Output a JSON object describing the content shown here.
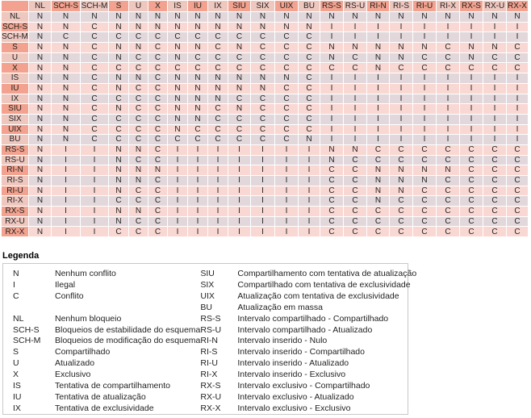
{
  "matrix": {
    "columns": [
      "NL",
      "SCH-S",
      "SCH-M",
      "S",
      "U",
      "X",
      "IS",
      "IU",
      "IX",
      "SIU",
      "SIX",
      "UIX",
      "BU",
      "RS-S",
      "RS-U",
      "RI-N",
      "RI-S",
      "RI-U",
      "RI-X",
      "RX-S",
      "RX-U",
      "RX-X"
    ],
    "rows": [
      {
        "label": "NL",
        "cells": [
          "N",
          "N",
          "N",
          "N",
          "N",
          "N",
          "N",
          "N",
          "N",
          "N",
          "N",
          "N",
          "N",
          "N",
          "N",
          "N",
          "N",
          "N",
          "N",
          "N",
          "N",
          "N"
        ]
      },
      {
        "label": "SCH-S",
        "cells": [
          "N",
          "N",
          "C",
          "N",
          "N",
          "N",
          "N",
          "N",
          "N",
          "N",
          "N",
          "N",
          "N",
          "I",
          "I",
          "I",
          "I",
          "I",
          "I",
          "I",
          "I",
          "I"
        ]
      },
      {
        "label": "SCH-M",
        "cells": [
          "N",
          "C",
          "C",
          "C",
          "C",
          "C",
          "C",
          "C",
          "C",
          "C",
          "C",
          "C",
          "C",
          "I",
          "I",
          "I",
          "I",
          "I",
          "I",
          "I",
          "I",
          "I"
        ]
      },
      {
        "label": "S",
        "cells": [
          "N",
          "N",
          "C",
          "N",
          "N",
          "C",
          "N",
          "N",
          "C",
          "N",
          "C",
          "C",
          "C",
          "N",
          "N",
          "N",
          "N",
          "N",
          "C",
          "N",
          "N",
          "C"
        ]
      },
      {
        "label": "U",
        "cells": [
          "N",
          "N",
          "C",
          "N",
          "C",
          "C",
          "N",
          "C",
          "C",
          "C",
          "C",
          "C",
          "C",
          "N",
          "C",
          "N",
          "N",
          "C",
          "C",
          "N",
          "C",
          "C"
        ]
      },
      {
        "label": "X",
        "cells": [
          "N",
          "N",
          "C",
          "C",
          "C",
          "C",
          "C",
          "C",
          "C",
          "C",
          "C",
          "C",
          "C",
          "C",
          "C",
          "N",
          "C",
          "C",
          "C",
          "C",
          "C",
          "C"
        ]
      },
      {
        "label": "IS",
        "cells": [
          "N",
          "N",
          "C",
          "N",
          "N",
          "C",
          "N",
          "N",
          "N",
          "N",
          "N",
          "N",
          "C",
          "I",
          "I",
          "I",
          "I",
          "I",
          "I",
          "I",
          "I",
          "I"
        ]
      },
      {
        "label": "IU",
        "cells": [
          "N",
          "N",
          "C",
          "N",
          "C",
          "C",
          "N",
          "N",
          "N",
          "N",
          "N",
          "C",
          "C",
          "I",
          "I",
          "I",
          "I",
          "I",
          "I",
          "I",
          "I",
          "I"
        ]
      },
      {
        "label": "IX",
        "cells": [
          "N",
          "N",
          "C",
          "C",
          "C",
          "C",
          "N",
          "N",
          "N",
          "C",
          "C",
          "C",
          "C",
          "I",
          "I",
          "I",
          "I",
          "I",
          "I",
          "I",
          "I",
          "I"
        ]
      },
      {
        "label": "SIU",
        "cells": [
          "N",
          "N",
          "C",
          "N",
          "C",
          "C",
          "N",
          "N",
          "C",
          "N",
          "C",
          "C",
          "C",
          "I",
          "I",
          "I",
          "I",
          "I",
          "I",
          "I",
          "I",
          "I"
        ]
      },
      {
        "label": "SIX",
        "cells": [
          "N",
          "N",
          "C",
          "C",
          "C",
          "C",
          "N",
          "N",
          "C",
          "C",
          "C",
          "C",
          "C",
          "I",
          "I",
          "I",
          "I",
          "I",
          "I",
          "I",
          "I",
          "I"
        ]
      },
      {
        "label": "UIX",
        "cells": [
          "N",
          "N",
          "C",
          "C",
          "C",
          "C",
          "N",
          "C",
          "C",
          "C",
          "C",
          "C",
          "C",
          "I",
          "I",
          "I",
          "I",
          "I",
          "I",
          "I",
          "I",
          "I"
        ]
      },
      {
        "label": "BU",
        "cells": [
          "N",
          "N",
          "C",
          "C",
          "C",
          "C",
          "C",
          "C",
          "C",
          "C",
          "C",
          "C",
          "N",
          "I",
          "I",
          "I",
          "I",
          "I",
          "I",
          "I",
          "I",
          "I"
        ]
      },
      {
        "label": "RS-S",
        "cells": [
          "N",
          "I",
          "I",
          "N",
          "N",
          "C",
          "I",
          "I",
          "I",
          "I",
          "I",
          "I",
          "I",
          "N",
          "N",
          "C",
          "C",
          "C",
          "C",
          "C",
          "C",
          "C"
        ]
      },
      {
        "label": "RS-U",
        "cells": [
          "N",
          "I",
          "I",
          "N",
          "C",
          "C",
          "I",
          "I",
          "I",
          "I",
          "I",
          "I",
          "I",
          "N",
          "C",
          "C",
          "C",
          "C",
          "C",
          "C",
          "C",
          "C"
        ]
      },
      {
        "label": "RI-N",
        "cells": [
          "N",
          "I",
          "I",
          "N",
          "N",
          "N",
          "I",
          "I",
          "I",
          "I",
          "I",
          "I",
          "I",
          "C",
          "C",
          "N",
          "N",
          "N",
          "N",
          "C",
          "C",
          "C"
        ]
      },
      {
        "label": "RI-S",
        "cells": [
          "N",
          "I",
          "I",
          "N",
          "N",
          "C",
          "I",
          "I",
          "I",
          "I",
          "I",
          "I",
          "I",
          "C",
          "C",
          "N",
          "N",
          "N",
          "C",
          "C",
          "C",
          "C"
        ]
      },
      {
        "label": "RI-U",
        "cells": [
          "N",
          "I",
          "I",
          "N",
          "C",
          "C",
          "I",
          "I",
          "I",
          "I",
          "I",
          "I",
          "I",
          "C",
          "C",
          "N",
          "N",
          "C",
          "C",
          "C",
          "C",
          "C"
        ]
      },
      {
        "label": "RI-X",
        "cells": [
          "N",
          "I",
          "I",
          "C",
          "C",
          "C",
          "I",
          "I",
          "I",
          "I",
          "I",
          "I",
          "I",
          "C",
          "C",
          "N",
          "C",
          "C",
          "C",
          "C",
          "C",
          "C"
        ]
      },
      {
        "label": "RX-S",
        "cells": [
          "N",
          "I",
          "I",
          "N",
          "N",
          "C",
          "I",
          "I",
          "I",
          "I",
          "I",
          "I",
          "I",
          "C",
          "C",
          "C",
          "C",
          "C",
          "C",
          "C",
          "C",
          "C"
        ]
      },
      {
        "label": "RX-U",
        "cells": [
          "N",
          "I",
          "I",
          "N",
          "C",
          "C",
          "I",
          "I",
          "I",
          "I",
          "I",
          "I",
          "I",
          "C",
          "C",
          "C",
          "C",
          "C",
          "C",
          "C",
          "C",
          "C"
        ]
      },
      {
        "label": "RX-X",
        "cells": [
          "N",
          "I",
          "I",
          "C",
          "C",
          "C",
          "I",
          "I",
          "I",
          "I",
          "I",
          "I",
          "I",
          "C",
          "C",
          "C",
          "C",
          "C",
          "C",
          "C",
          "C",
          "C"
        ]
      }
    ]
  },
  "legend": {
    "title": "Legenda",
    "left_entries": [
      {
        "code": "N",
        "label": "Nenhum conflito"
      },
      {
        "code": "I",
        "label": "Ilegal"
      },
      {
        "code": "C",
        "label": "Conflito"
      },
      {
        "code": "",
        "label": ""
      },
      {
        "code": "NL",
        "label": "Nenhum bloqueio"
      },
      {
        "code": "SCH-S",
        "label": "Bloqueios de estabilidade do esquema"
      },
      {
        "code": "SCH-M",
        "label": "Bloqueios de modificação do esquema"
      },
      {
        "code": "S",
        "label": "Compartilhado"
      },
      {
        "code": "U",
        "label": "Atualizado"
      },
      {
        "code": "X",
        "label": "Exclusivo"
      },
      {
        "code": "IS",
        "label": "Tentativa de compartilhamento"
      },
      {
        "code": "IU",
        "label": "Tentativa de atualização"
      },
      {
        "code": "IX",
        "label": "Tentativa de exclusividade"
      }
    ],
    "right_entries": [
      {
        "code": "SIU",
        "label": "Compartilhamento com tentativa de atualização"
      },
      {
        "code": "SIX",
        "label": "Compartilhado com tentativa de exclusividade"
      },
      {
        "code": "UIX",
        "label": "Atualização com tentativa de exclusividade"
      },
      {
        "code": "BU",
        "label": "Atualização em massa"
      },
      {
        "code": "RS-S",
        "label": "Intervalo compartilhado - Compartilhado"
      },
      {
        "code": "RS-U",
        "label": "Intervalo compartilhado - Atualizado"
      },
      {
        "code": "RI-N",
        "label": "Intervalo inserido - Nulo"
      },
      {
        "code": "RI-S",
        "label": "Intervalo inserido - Compartilhado"
      },
      {
        "code": "RI-U",
        "label": "Intervalo inserido - Atualizado"
      },
      {
        "code": "RI-X",
        "label": "Intervalo inserido - Exclusivo"
      },
      {
        "code": "RX-S",
        "label": "Intervalo exclusivo - Compartilhado"
      },
      {
        "code": "RX-U",
        "label": "Intervalo exclusivo - Atualizado"
      },
      {
        "code": "RX-X",
        "label": "Intervalo exclusivo - Exclusivo"
      }
    ]
  },
  "colors": {
    "header_dark": "#f2a28e",
    "header_light": "#eec7bf",
    "row_a": "#e2d8dc",
    "row_b": "#f9d7d2",
    "grid": "#ffffff",
    "legend_border": "#c8c8c8",
    "text": "#1f1f1f"
  }
}
